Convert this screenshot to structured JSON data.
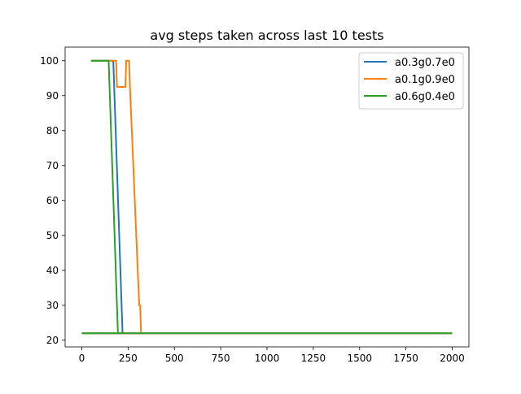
{
  "chart_data": {
    "type": "line",
    "title": "avg steps taken across last 10 tests",
    "xlabel": "",
    "ylabel": "",
    "xlim": [
      -90,
      2090
    ],
    "ylim": [
      18.1,
      103.9
    ],
    "xticks": [
      0,
      250,
      500,
      750,
      1000,
      1250,
      1500,
      1750,
      2000
    ],
    "yticks": [
      20,
      30,
      40,
      50,
      60,
      70,
      80,
      90,
      100
    ],
    "grid": false,
    "legend_position": "top-right",
    "series": [
      {
        "name": "a0.3g0.7e0",
        "color": "#1f77b4",
        "segments": [
          [
            [
              50,
              100
            ],
            [
              170,
              100
            ],
            [
              220,
              22
            ]
          ],
          [
            [
              0,
              22
            ],
            [
              2000,
              22
            ]
          ]
        ]
      },
      {
        "name": "a0.1g0.9e0",
        "color": "#ff7f0e",
        "segments": [
          [
            [
              50,
              100
            ],
            [
              185,
              100
            ],
            [
              190,
              92.5
            ],
            [
              235,
              92.5
            ],
            [
              240,
              100
            ],
            [
              255,
              100
            ],
            [
              260,
              92.5
            ],
            [
              310,
              30
            ],
            [
              315,
              30
            ],
            [
              320,
              22
            ]
          ],
          [
            [
              0,
              22
            ],
            [
              2000,
              22
            ]
          ]
        ]
      },
      {
        "name": "a0.6g0.4e0",
        "color": "#2ca02c",
        "segments": [
          [
            [
              50,
              100
            ],
            [
              145,
              100
            ],
            [
              195,
              22
            ]
          ],
          [
            [
              0,
              22
            ],
            [
              2000,
              22
            ]
          ]
        ]
      }
    ]
  }
}
